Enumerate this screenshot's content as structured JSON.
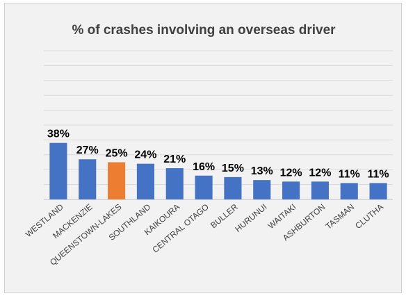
{
  "chart_data": {
    "type": "bar",
    "title": "% of crashes involving an overseas driver",
    "categories": [
      "WESTLAND",
      "MACKENZIE",
      "QUEENSTOWN-LAKES",
      "SOUTHLAND",
      "KAIKOURA",
      "CENTRAL OTAGO",
      "BULLER",
      "HURUNUI",
      "WAITAKI",
      "ASHBURTON",
      "TASMAN",
      "CLUTHA"
    ],
    "values": [
      38,
      27,
      25,
      24,
      21,
      16,
      15,
      13,
      12,
      12,
      11,
      11
    ],
    "data_labels": [
      "38%",
      "27%",
      "25%",
      "24%",
      "21%",
      "16%",
      "15%",
      "13%",
      "12%",
      "12%",
      "11%",
      "11%"
    ],
    "highlighted_category": "QUEENSTOWN-LAKES",
    "xlabel": "",
    "ylabel": "",
    "ylim": [
      0,
      100
    ],
    "grid": true,
    "legend": "none",
    "colors": {
      "bar": "#4472c4",
      "highlight": "#ed7d31",
      "grid": "#d9d9d9",
      "background": "#f2f2f2",
      "axis": "#bfbfbf"
    }
  }
}
